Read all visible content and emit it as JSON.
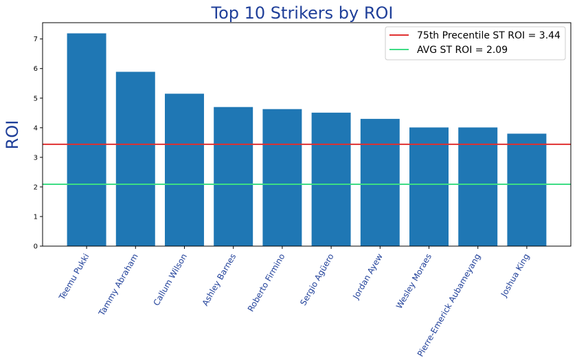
{
  "chart_data": {
    "type": "bar",
    "title": "Top 10 Strikers by ROI",
    "xlabel": "",
    "ylabel": "ROI",
    "ylim": [
      0,
      7.55
    ],
    "yticks": [
      0,
      1,
      2,
      3,
      4,
      5,
      6,
      7
    ],
    "categories": [
      "Teemu Pukki",
      "Tammy Abraham",
      "Callum Wilson",
      "Ashley Barnes",
      "Roberto Firmino",
      "Sergio Agüero",
      "Jordan Ayew",
      "Wesley Moraes",
      "Pierre-Emerick Aubameyang",
      "Joshua King"
    ],
    "values": [
      7.19,
      5.89,
      5.15,
      4.7,
      4.63,
      4.51,
      4.3,
      4.01,
      4.01,
      3.8
    ],
    "bar_color": "#1f77b4",
    "reference_lines": [
      {
        "label": "75th Precentile ST ROI = 3.44",
        "value": 3.44,
        "color": "#e03030"
      },
      {
        "label": "AVG ST ROI = 2.09",
        "value": 2.09,
        "color": "#3ddc84"
      }
    ],
    "legend_position": "top-right",
    "grid": false,
    "text_color": "#1f3f99"
  }
}
